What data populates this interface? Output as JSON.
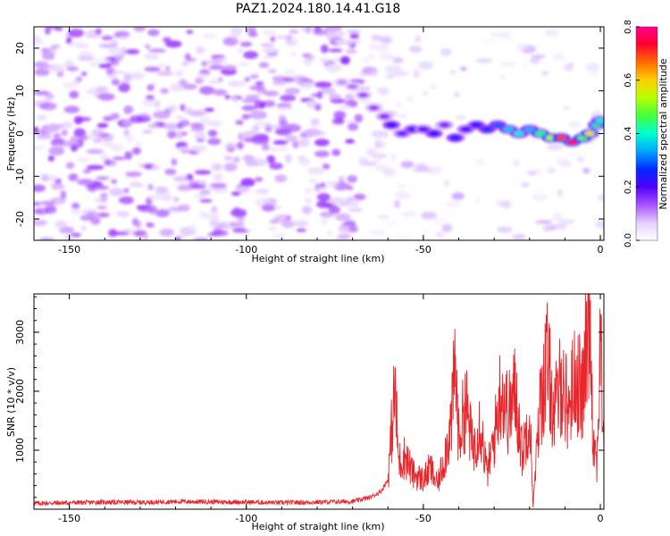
{
  "title": "PAZ1.2024.180.14.41.G18",
  "chart_data": [
    {
      "type": "heatmap",
      "xlabel": "Height of straight line (km)",
      "ylabel": "Frequency (Hz)",
      "xlim": [
        -160,
        1
      ],
      "ylim": [
        -25,
        25
      ],
      "xticks": [
        -150,
        -100,
        -50,
        0
      ],
      "yticks": [
        -20,
        -10,
        0,
        10,
        20
      ],
      "colorbar": {
        "label": "Normalized spectral amplitude",
        "range": [
          0,
          0.8
        ],
        "ticks": [
          0.0,
          0.2,
          0.4,
          0.6,
          0.8
        ],
        "colors": [
          "#ffffff",
          "#e6d2ff",
          "#a64dff",
          "#7a00ff",
          "#3a00ff",
          "#0028ff",
          "#00aaff",
          "#00ffd0",
          "#40ff40",
          "#d8ff00",
          "#ffb000",
          "#ff3000",
          "#ff005a"
        ]
      },
      "ridge": [
        {
          "x": -73,
          "y": 12,
          "v": 0.1
        },
        {
          "x": -70,
          "y": 11,
          "v": 0.12
        },
        {
          "x": -67,
          "y": 9,
          "v": 0.15
        },
        {
          "x": -64,
          "y": 6,
          "v": 0.16
        },
        {
          "x": -61,
          "y": 4,
          "v": 0.18
        },
        {
          "x": -59,
          "y": 2,
          "v": 0.3
        },
        {
          "x": -56,
          "y": 0,
          "v": 0.22
        },
        {
          "x": -53,
          "y": 1,
          "v": 0.28
        },
        {
          "x": -50,
          "y": 1,
          "v": 0.24
        },
        {
          "x": -47,
          "y": 0,
          "v": 0.3
        },
        {
          "x": -44,
          "y": 2,
          "v": 0.2
        },
        {
          "x": -41,
          "y": -1,
          "v": 0.32
        },
        {
          "x": -38,
          "y": 1,
          "v": 0.26
        },
        {
          "x": -35,
          "y": 2,
          "v": 0.3
        },
        {
          "x": -32,
          "y": 1,
          "v": 0.34
        },
        {
          "x": -29,
          "y": 2,
          "v": 0.36
        },
        {
          "x": -26,
          "y": 1,
          "v": 0.42
        },
        {
          "x": -23,
          "y": 0,
          "v": 0.45
        },
        {
          "x": -20,
          "y": 1,
          "v": 0.4
        },
        {
          "x": -17,
          "y": 0,
          "v": 0.5
        },
        {
          "x": -14,
          "y": -1,
          "v": 0.58
        },
        {
          "x": -11,
          "y": -1,
          "v": 0.72
        },
        {
          "x": -8,
          "y": -2,
          "v": 0.8
        },
        {
          "x": -5,
          "y": -1,
          "v": 0.55
        },
        {
          "x": -3,
          "y": 0,
          "v": 0.62
        },
        {
          "x": -1,
          "y": 2,
          "v": 0.5
        },
        {
          "x": 0,
          "y": 3,
          "v": 0.45
        }
      ]
    },
    {
      "type": "line",
      "xlabel": "Height of straight line (km)",
      "ylabel": "SNR (10 * v/v)",
      "xlim": [
        -160,
        1
      ],
      "ylim": [
        0,
        3650
      ],
      "xticks": [
        -150,
        -100,
        -50,
        0
      ],
      "yticks": [
        1000,
        2000,
        3000
      ],
      "series_color": "#e8262b",
      "series": [
        {
          "values_description": "noise floor ~100 from -160 to -60 km, rising to 2000-3600 near 0 km",
          "points": [
            [
              -160,
              100
            ],
            [
              -150,
              110
            ],
            [
              -140,
              120
            ],
            [
              -130,
              115
            ],
            [
              -120,
              130
            ],
            [
              -110,
              125
            ],
            [
              -100,
              120
            ],
            [
              -90,
              110
            ],
            [
              -80,
              120
            ],
            [
              -70,
              130
            ],
            [
              -65,
              200
            ],
            [
              -62,
              300
            ],
            [
              -60,
              500
            ],
            [
              -59,
              1300
            ],
            [
              -58,
              2050
            ],
            [
              -57,
              800
            ],
            [
              -55,
              900
            ],
            [
              -53,
              600
            ],
            [
              -50,
              500
            ],
            [
              -48,
              700
            ],
            [
              -46,
              400
            ],
            [
              -44,
              900
            ],
            [
              -42,
              1500
            ],
            [
              -41,
              2500
            ],
            [
              -40,
              1200
            ],
            [
              -38,
              1800
            ],
            [
              -36,
              1000
            ],
            [
              -34,
              1500
            ],
            [
              -32,
              600
            ],
            [
              -30,
              1200
            ],
            [
              -28,
              2100
            ],
            [
              -26,
              1600
            ],
            [
              -24,
              2000
            ],
            [
              -22,
              900
            ],
            [
              -20,
              1700
            ],
            [
              -19,
              50
            ],
            [
              -17,
              1800
            ],
            [
              -15,
              2500
            ],
            [
              -13,
              1600
            ],
            [
              -11,
              2200
            ],
            [
              -9,
              1700
            ],
            [
              -7,
              2300
            ],
            [
              -5,
              1900
            ],
            [
              -3,
              3600
            ],
            [
              -2,
              1200
            ],
            [
              -1,
              800
            ],
            [
              0,
              2700
            ],
            [
              1,
              1300
            ]
          ]
        }
      ]
    }
  ]
}
